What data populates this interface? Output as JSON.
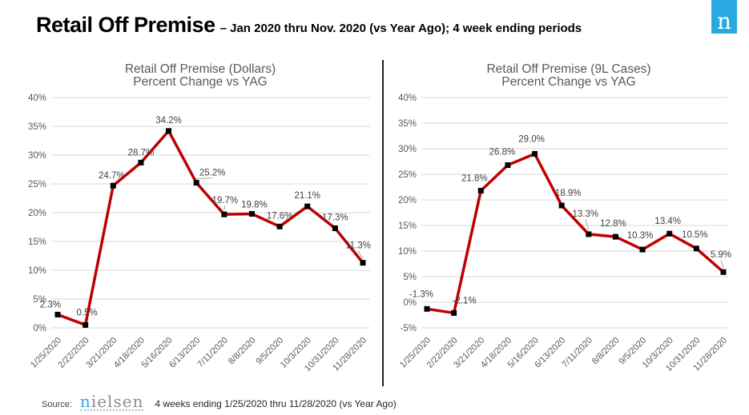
{
  "header": {
    "title": "Retail Off Premise",
    "subtitle": "– Jan 2020 thru Nov. 2020 (vs Year Ago); 4 week ending periods",
    "logo_letter": "n"
  },
  "footer": {
    "source_label": "Source:",
    "brand_first_letter": "n",
    "brand_rest": "ielsen",
    "note": "4 weeks ending 1/25/2020 thru 11/28/2020 (vs Year Ago)"
  },
  "colors": {
    "line": "#C00000",
    "marker": "#000000",
    "grid": "#D9D9D9",
    "axis_text": "#595959",
    "label_text": "#404040",
    "leader": "#A6A6A6",
    "brand_blue": "#29A9E1"
  },
  "chart_data": [
    {
      "type": "line",
      "title_line1": "Retail Off Premise (Dollars)",
      "title_line2": "Percent Change vs YAG",
      "categories": [
        "1/25/2020",
        "2/22/2020",
        "3/21/2020",
        "4/18/2020",
        "5/16/2020",
        "6/13/2020",
        "7/11/2020",
        "8/8/2020",
        "9/5/2020",
        "10/3/2020",
        "10/31/2020",
        "11/28/2020"
      ],
      "values": [
        2.3,
        0.5,
        24.7,
        28.7,
        34.2,
        25.2,
        19.7,
        19.8,
        17.6,
        21.1,
        17.3,
        11.3
      ],
      "labels": [
        "2.3%",
        "0.5%",
        "24.7%",
        "28.7%",
        "34.2%",
        "25.2%",
        "19.7%",
        "19.8%",
        "17.6%",
        "21.1%",
        "17.3%",
        "11.3%"
      ],
      "xlabel": "",
      "ylabel": "",
      "ylim": [
        0,
        40
      ],
      "ytick_step": 5,
      "ytick_suffix": "%",
      "grid": true,
      "legend": "none",
      "label_offsets": [
        [
          -9,
          -9,
          0
        ],
        [
          2,
          -12,
          0
        ],
        [
          -2,
          -9,
          0
        ],
        [
          0,
          -9,
          0
        ],
        [
          0,
          -10,
          0
        ],
        [
          20,
          -9,
          1
        ],
        [
          1,
          -14,
          1
        ],
        [
          3,
          -8,
          0
        ],
        [
          0,
          -10,
          0
        ],
        [
          0,
          -10,
          0
        ],
        [
          0,
          -10,
          0
        ],
        [
          -6,
          -18,
          1
        ]
      ]
    },
    {
      "type": "line",
      "title_line1": "Retail Off Premise (9L Cases)",
      "title_line2": "Percent Change vs YAG",
      "categories": [
        "1/25/2020",
        "2/22/2020",
        "3/21/2020",
        "4/18/2020",
        "5/16/2020",
        "6/13/2020",
        "7/11/2020",
        "8/8/2020",
        "9/5/2020",
        "10/3/2020",
        "10/31/2020",
        "11/28/2020"
      ],
      "values": [
        -1.3,
        -2.1,
        21.8,
        26.8,
        29.0,
        18.9,
        13.3,
        12.8,
        10.3,
        13.4,
        10.5,
        5.9
      ],
      "labels": [
        "-1.3%",
        "-2.1%",
        "21.8%",
        "26.8%",
        "29.0%",
        "18.9%",
        "13.3%",
        "12.8%",
        "10.3%",
        "13.4%",
        "10.5%",
        "5.9%"
      ],
      "xlabel": "",
      "ylabel": "",
      "ylim": [
        -5,
        40
      ],
      "ytick_step": 5,
      "ytick_suffix": "%",
      "grid": true,
      "legend": "none",
      "label_offsets": [
        [
          -7,
          -15,
          0
        ],
        [
          13,
          -12,
          0
        ],
        [
          -8,
          -12,
          0
        ],
        [
          -7,
          -13,
          0
        ],
        [
          -4,
          -15,
          0
        ],
        [
          8,
          -12,
          0
        ],
        [
          -4,
          -22,
          1
        ],
        [
          -3,
          -13,
          0
        ],
        [
          -3,
          -14,
          0
        ],
        [
          -2,
          -12,
          0
        ],
        [
          -2,
          -14,
          0
        ],
        [
          -3,
          -18,
          1
        ]
      ]
    }
  ]
}
